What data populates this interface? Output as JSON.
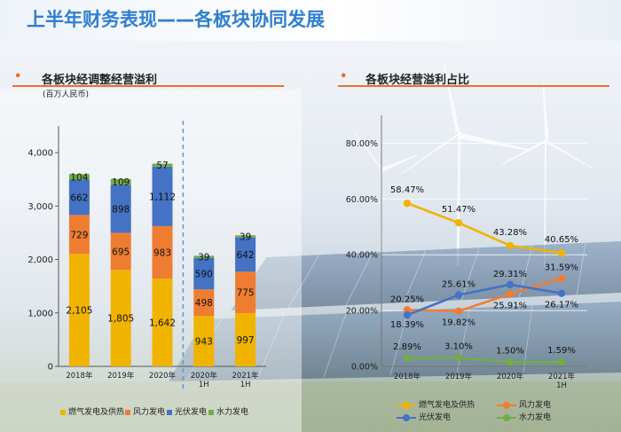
{
  "page": {
    "title": "上半年财务表现——各板块协同发展"
  },
  "left": {
    "title": "各板块经调整经营溢利",
    "unit": "(百万人民币)"
  },
  "right": {
    "title": "各板块经营溢利占比"
  },
  "colors": {
    "gas": "#f0b400",
    "wind": "#ef7d31",
    "solar": "#4472c4",
    "hydro": "#70ad47",
    "accent": "#e8722a",
    "title": "#2f7fd0"
  },
  "chart_data": [
    {
      "type": "bar",
      "stacked": true,
      "title": "各板块经调整经营溢利",
      "ylabel": "(百万人民币)",
      "ylim": [
        0,
        4500
      ],
      "yticks": [
        0,
        1000,
        2000,
        3000,
        4000
      ],
      "ytick_labels": [
        "0",
        "1,000",
        "2,000",
        "3,000",
        "4,000"
      ],
      "categories": [
        "2018年",
        "2019年",
        "2020年",
        "2020年\n1H",
        "2021年\n1H"
      ],
      "category_lines": [
        [
          "2018年"
        ],
        [
          "2019年"
        ],
        [
          "2020年"
        ],
        [
          "2020年",
          "1H"
        ],
        [
          "2021年",
          "1H"
        ]
      ],
      "series": [
        {
          "name": "燃气发电及供热",
          "values": [
            2105,
            1805,
            1642,
            943,
            997
          ]
        },
        {
          "name": "风力发电",
          "values": [
            729,
            695,
            983,
            498,
            775
          ]
        },
        {
          "name": "光伏发电",
          "values": [
            662,
            898,
            1112,
            590,
            642
          ]
        },
        {
          "name": "水力发电",
          "values": [
            104,
            109,
            57,
            39,
            39
          ]
        }
      ],
      "labels": [
        [
          "2,105",
          "1,805",
          "1,642",
          "943",
          "997"
        ],
        [
          "729",
          "695",
          "983",
          "498",
          "775"
        ],
        [
          "662",
          "898",
          "1,112",
          "590",
          "642"
        ],
        [
          "104",
          "109",
          "57",
          "39",
          "39"
        ]
      ],
      "divider_after_category": 2,
      "legend": "bottom"
    },
    {
      "type": "line",
      "title": "各板块经营溢利占比",
      "ylim": [
        0,
        0.9
      ],
      "yticks": [
        0,
        0.2,
        0.4,
        0.6,
        0.8
      ],
      "ytick_labels": [
        "0.00%",
        "20.00%",
        "40.00%",
        "60.00%",
        "80.00%"
      ],
      "categories": [
        "2018年",
        "2019年",
        "2020年",
        "2021年\n1H"
      ],
      "category_lines": [
        [
          "2018年"
        ],
        [
          "2019年"
        ],
        [
          "2020年"
        ],
        [
          "2021年",
          "1H"
        ]
      ],
      "series": [
        {
          "name": "燃气发电及供热",
          "values": [
            0.5847,
            0.5147,
            0.4328,
            0.4065
          ],
          "labels": [
            "58.47%",
            "51.47%",
            "43.28%",
            "40.65%"
          ]
        },
        {
          "name": "风力发电",
          "values": [
            0.2025,
            0.1982,
            0.2591,
            0.3159
          ],
          "labels": [
            "20.25%",
            "19.82%",
            "25.91%",
            "31.59%"
          ]
        },
        {
          "name": "光伏发电",
          "values": [
            0.1839,
            0.2561,
            0.2931,
            0.2617
          ],
          "labels": [
            "18.39%",
            "25.61%",
            "29.31%",
            "26.17%"
          ]
        },
        {
          "name": "水力发电",
          "values": [
            0.0289,
            0.031,
            0.015,
            0.0159
          ],
          "labels": [
            "2.89%",
            "3.10%",
            "1.50%",
            "1.59%"
          ]
        }
      ],
      "legend": "bottom"
    }
  ]
}
